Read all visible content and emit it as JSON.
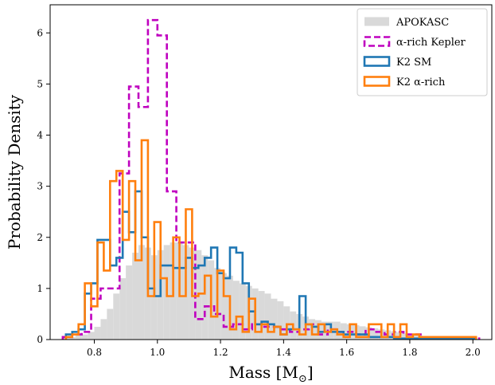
{
  "chart_data": {
    "type": "histogram-step",
    "xlabel": "Mass [M",
    "xlabel_sub": "⊙",
    "xlabel_end": "]",
    "ylabel": "Probability Density",
    "xlim": [
      0.66,
      2.06
    ],
    "ylim": [
      0,
      6.55
    ],
    "xticks": [
      0.8,
      1.0,
      1.2,
      1.4,
      1.6,
      1.8,
      2.0
    ],
    "xtick_labels": [
      "0.8",
      "1.0",
      "1.2",
      "1.4",
      "1.6",
      "1.8",
      "2.0"
    ],
    "yticks": [
      0,
      1,
      2,
      3,
      4,
      5,
      6
    ],
    "ytick_labels": [
      "0",
      "1",
      "2",
      "3",
      "4",
      "5",
      "6"
    ],
    "legend_position": "top-right",
    "series": [
      {
        "name": "APOKASC",
        "style": "filled",
        "color": "#d9d9d9",
        "bin_width": 0.02,
        "x0": 0.7,
        "values": [
          0.03,
          0.05,
          0.08,
          0.1,
          0.15,
          0.25,
          0.4,
          0.6,
          0.9,
          1.2,
          1.45,
          1.7,
          1.85,
          1.8,
          1.65,
          1.75,
          1.85,
          1.9,
          1.9,
          1.85,
          1.8,
          1.75,
          1.65,
          1.55,
          1.4,
          1.3,
          1.25,
          1.15,
          1.1,
          1.05,
          1.0,
          0.95,
          0.9,
          0.8,
          0.75,
          0.65,
          0.55,
          0.5,
          0.45,
          0.4,
          0.38,
          0.35,
          0.35,
          0.35,
          0.32,
          0.3,
          0.28,
          0.26,
          0.24,
          0.22,
          0.2,
          0.18,
          0.16,
          0.14,
          0.12,
          0.1,
          0.08,
          0.06,
          0.05,
          0.04,
          0.03,
          0.02,
          0.02,
          0.01,
          0.01
        ]
      },
      {
        "name": "α-rich Kepler",
        "style": "dashed",
        "color": "#bf00bf",
        "bin_width": 0.03,
        "x0": 0.7,
        "values": [
          0.05,
          0.1,
          0.15,
          0.8,
          1.0,
          1.0,
          3.25,
          4.95,
          4.55,
          6.25,
          5.95,
          2.9,
          1.9,
          1.9,
          0.4,
          0.65,
          0.5,
          0.25,
          0.3,
          0.2,
          0.3,
          0.25,
          0.25,
          0.2,
          0.15,
          0.2,
          0.3,
          0.1,
          0.2,
          0.15,
          0.15,
          0.1,
          0.2,
          0.15,
          0.1,
          0.15,
          0.1,
          0.1,
          0.05,
          0.05,
          0.05,
          0.05,
          0.02,
          0.02
        ]
      },
      {
        "name": "K2 SM",
        "style": "step",
        "color": "#1f77b4",
        "bin_width": 0.02,
        "x0": 0.71,
        "values": [
          0.1,
          0.15,
          0.2,
          0.9,
          1.1,
          1.95,
          1.95,
          1.45,
          1.6,
          2.5,
          2.1,
          2.9,
          2.0,
          1.0,
          0.85,
          1.45,
          1.45,
          1.4,
          1.4,
          1.6,
          1.4,
          1.45,
          1.6,
          1.8,
          1.3,
          1.2,
          1.8,
          1.7,
          1.1,
          0.55,
          0.3,
          0.35,
          0.3,
          0.25,
          0.1,
          0.2,
          0.2,
          0.85,
          0.3,
          0.25,
          0.15,
          0.3,
          0.15,
          0.15,
          0.1,
          0.1,
          0.1,
          0.1,
          0.05,
          0.05,
          0.05,
          0.05,
          0.02,
          0.02,
          0.02,
          0.02,
          0.02,
          0.02,
          0.02,
          0.02,
          0.02,
          0.02,
          0.02,
          0.02,
          0.02
        ]
      },
      {
        "name": "K2 α-rich",
        "style": "step",
        "color": "#ff7f0e",
        "bin_width": 0.02,
        "x0": 0.71,
        "values": [
          0.05,
          0.1,
          0.3,
          1.1,
          0.65,
          1.9,
          1.35,
          3.1,
          3.3,
          1.95,
          3.1,
          1.55,
          3.9,
          0.85,
          2.3,
          1.2,
          0.85,
          2.0,
          0.85,
          2.55,
          0.85,
          0.9,
          1.25,
          0.45,
          1.35,
          0.85,
          0.2,
          0.45,
          0.15,
          0.8,
          0.15,
          0.3,
          0.15,
          0.25,
          0.1,
          0.3,
          0.2,
          0.1,
          0.3,
          0.1,
          0.3,
          0.15,
          0.2,
          0.1,
          0.05,
          0.3,
          0.05,
          0.05,
          0.3,
          0.3,
          0.05,
          0.3,
          0.05,
          0.3,
          0.05,
          0.1,
          0.05,
          0.05,
          0.05,
          0.05,
          0.05,
          0.05,
          0.05,
          0.05,
          0.05
        ]
      }
    ]
  }
}
